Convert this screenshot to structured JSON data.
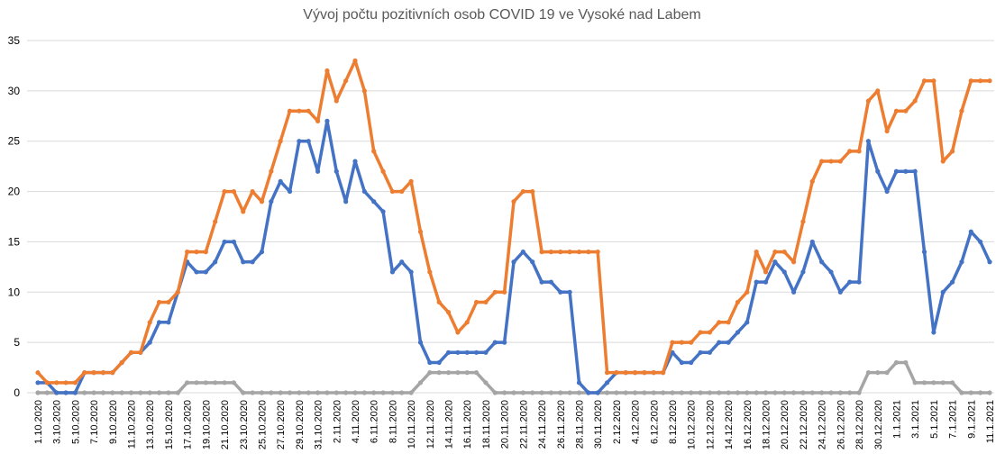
{
  "chart_data": {
    "type": "line",
    "title": "Vývoj počtu pozitivních osob COVID 19 ve Vysoké nad Labem",
    "xlabel": "",
    "ylabel": "",
    "ylim": [
      0,
      35
    ],
    "yticks": [
      "0",
      "5",
      "10",
      "15",
      "20",
      "25",
      "30",
      "35"
    ],
    "grid": true,
    "legend": "none",
    "x_tick_labels": [
      "1.10.2020",
      "3.10.2020",
      "5.10.2020",
      "7.10.2020",
      "9.10.2020",
      "11.10.2020",
      "13.10.2020",
      "15.10.2020",
      "17.10.2020",
      "19.10.2020",
      "21.10.2020",
      "23.10.2020",
      "25.10.2020",
      "27.10.2020",
      "29.10.2020",
      "31.10.2020",
      "2.11.2020",
      "4.11.2020",
      "6.11.2020",
      "8.11.2020",
      "10.11.2020",
      "12.11.2020",
      "14.11.2020",
      "16.11.2020",
      "18.11.2020",
      "20.11.2020",
      "22.11.2020",
      "24.11.2020",
      "26.11.2020",
      "28.11.2020",
      "30.11.2020",
      "2.12.2020",
      "4.12.2020",
      "6.12.2020",
      "8.12.2020",
      "10.12.2020",
      "12.12.2020",
      "14.12.2020",
      "16.12.2020",
      "18.12.2020",
      "20.12.2020",
      "22.12.2020",
      "24.12.2020",
      "26.12.2020",
      "28.12.2020",
      "30.12.2020",
      "1.1.2021",
      "3.1.2021",
      "5.1.2021",
      "7.1.2021",
      "9.1.2021",
      "11.1.2021"
    ],
    "series": [
      {
        "color": "#4472C4",
        "values": [
          1,
          1,
          0,
          0,
          0,
          2,
          2,
          2,
          2,
          3,
          4,
          4,
          5,
          7,
          7,
          10,
          13,
          12,
          12,
          13,
          15,
          15,
          13,
          13,
          14,
          19,
          21,
          20,
          25,
          25,
          22,
          27,
          22,
          19,
          23,
          20,
          19,
          18,
          12,
          13,
          12,
          5,
          3,
          3,
          4,
          4,
          4,
          4,
          4,
          5,
          5,
          13,
          14,
          13,
          11,
          11,
          10,
          10,
          1,
          0,
          0,
          1,
          2,
          2,
          2,
          2,
          2,
          2,
          4,
          3,
          3,
          4,
          4,
          5,
          5,
          6,
          7,
          11,
          11,
          13,
          12,
          10,
          12,
          15,
          13,
          12,
          10,
          11,
          11,
          25,
          22,
          20,
          22,
          22,
          22,
          14,
          6,
          10,
          11,
          13,
          16,
          15,
          13
        ]
      },
      {
        "color": "#ED7D31",
        "values": [
          2,
          1,
          1,
          1,
          1,
          2,
          2,
          2,
          2,
          3,
          4,
          4,
          7,
          9,
          9,
          10,
          14,
          14,
          14,
          17,
          20,
          20,
          18,
          20,
          19,
          22,
          25,
          28,
          28,
          28,
          27,
          32,
          29,
          31,
          33,
          30,
          24,
          22,
          20,
          20,
          21,
          16,
          12,
          9,
          8,
          6,
          7,
          9,
          9,
          10,
          10,
          19,
          20,
          20,
          14,
          14,
          14,
          14,
          14,
          14,
          14,
          2,
          2,
          2,
          2,
          2,
          2,
          2,
          5,
          5,
          5,
          6,
          6,
          7,
          7,
          9,
          10,
          14,
          12,
          14,
          14,
          13,
          17,
          21,
          23,
          23,
          23,
          24,
          24,
          29,
          30,
          26,
          28,
          28,
          29,
          31,
          31,
          23,
          24,
          28,
          31,
          31,
          31
        ]
      },
      {
        "color": "#A5A5A5",
        "values": [
          0,
          0,
          0,
          0,
          0,
          0,
          0,
          0,
          0,
          0,
          0,
          0,
          0,
          0,
          0,
          0,
          1,
          1,
          1,
          1,
          1,
          1,
          0,
          0,
          0,
          0,
          0,
          0,
          0,
          0,
          0,
          0,
          0,
          0,
          0,
          0,
          0,
          0,
          0,
          0,
          0,
          1,
          2,
          2,
          2,
          2,
          2,
          2,
          1,
          0,
          0,
          0,
          0,
          0,
          0,
          0,
          0,
          0,
          0,
          0,
          0,
          0,
          0,
          0,
          0,
          0,
          0,
          0,
          0,
          0,
          0,
          0,
          0,
          0,
          0,
          0,
          0,
          0,
          0,
          0,
          0,
          0,
          0,
          0,
          0,
          0,
          0,
          0,
          0,
          2,
          2,
          2,
          3,
          3,
          1,
          1,
          1,
          1,
          1,
          0,
          0,
          0,
          0
        ]
      }
    ]
  }
}
